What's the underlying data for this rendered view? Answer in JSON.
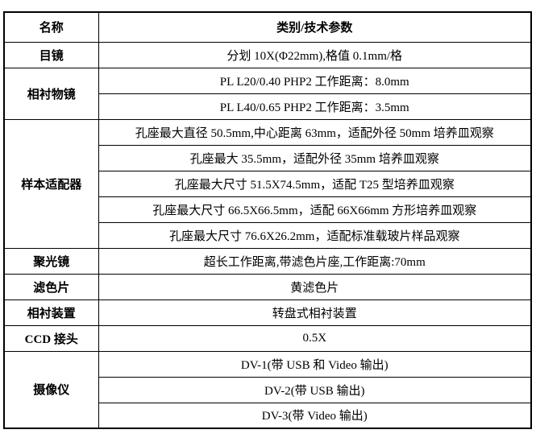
{
  "table": {
    "header": {
      "col1": "名称",
      "col2": "类别/技术参数"
    },
    "groups": [
      {
        "label": "目镜",
        "values": [
          "分划 10X(Φ22mm),格值 0.1mm/格"
        ]
      },
      {
        "label": "相衬物镜",
        "values": [
          "PL L20/0.40 PHP2 工作距离：8.0mm",
          "PL L40/0.65 PHP2 工作距离：3.5mm"
        ]
      },
      {
        "label": "样本适配器",
        "values": [
          "孔座最大直径 50.5mm,中心距离 63mm，适配外径 50mm 培养皿观察",
          "孔座最大 35.5mm，适配外径 35mm 培养皿观察",
          "孔座最大尺寸 51.5X74.5mm，适配 T25 型培养皿观察",
          "孔座最大尺寸 66.5X66.5mm，适配 66X66mm 方形培养皿观察",
          "孔座最大尺寸 76.6X26.2mm，适配标准载玻片样品观察"
        ]
      },
      {
        "label": "聚光镜",
        "values": [
          "超长工作距离,带滤色片座,工作距离:70mm"
        ]
      },
      {
        "label": "滤色片",
        "values": [
          "黄滤色片"
        ]
      },
      {
        "label": "相衬装置",
        "values": [
          "转盘式相衬装置"
        ]
      },
      {
        "label": "CCD 接头",
        "values": [
          "0.5X"
        ]
      },
      {
        "label": "摄像仪",
        "values": [
          "DV-1(带 USB 和 Video 输出)",
          "DV-2(带 USB 输出)",
          "DV-3(带 Video 输出)"
        ]
      }
    ],
    "border_color": "#000000",
    "text_color": "#000000",
    "background_color": "#ffffff"
  }
}
